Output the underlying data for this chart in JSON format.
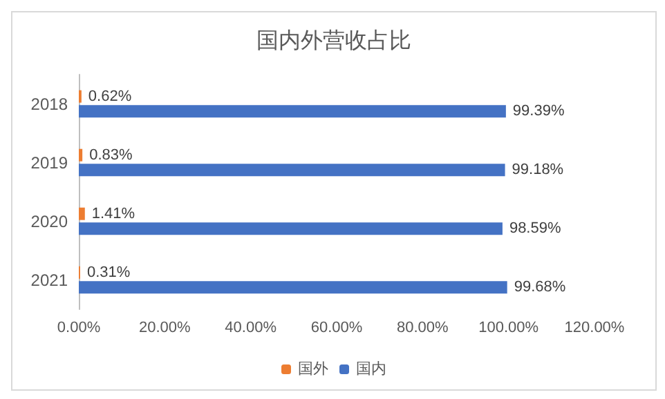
{
  "chart_data": {
    "type": "bar",
    "orientation": "horizontal",
    "title": "国内外营收占比",
    "categories": [
      "2018",
      "2019",
      "2020",
      "2021"
    ],
    "series": [
      {
        "name": "国外",
        "color": "#ed7d31",
        "values": [
          0.62,
          0.83,
          1.41,
          0.31
        ],
        "value_labels": [
          "0.62%",
          "0.83%",
          "1.41%",
          "0.31%"
        ]
      },
      {
        "name": "国内",
        "color": "#4472c4",
        "values": [
          99.39,
          99.18,
          98.59,
          99.68
        ],
        "value_labels": [
          "99.39%",
          "99.18%",
          "98.59%",
          "99.68%"
        ]
      }
    ],
    "xlim": [
      0,
      120
    ],
    "xticks": [
      {
        "value": 0,
        "label": "0.00%"
      },
      {
        "value": 20,
        "label": "20.00%"
      },
      {
        "value": 40,
        "label": "40.00%"
      },
      {
        "value": 60,
        "label": "60.00%"
      },
      {
        "value": 80,
        "label": "80.00%"
      },
      {
        "value": 100,
        "label": "100.00%"
      },
      {
        "value": 120,
        "label": "120.00%"
      }
    ],
    "grid": false,
    "legend": "bottom"
  }
}
